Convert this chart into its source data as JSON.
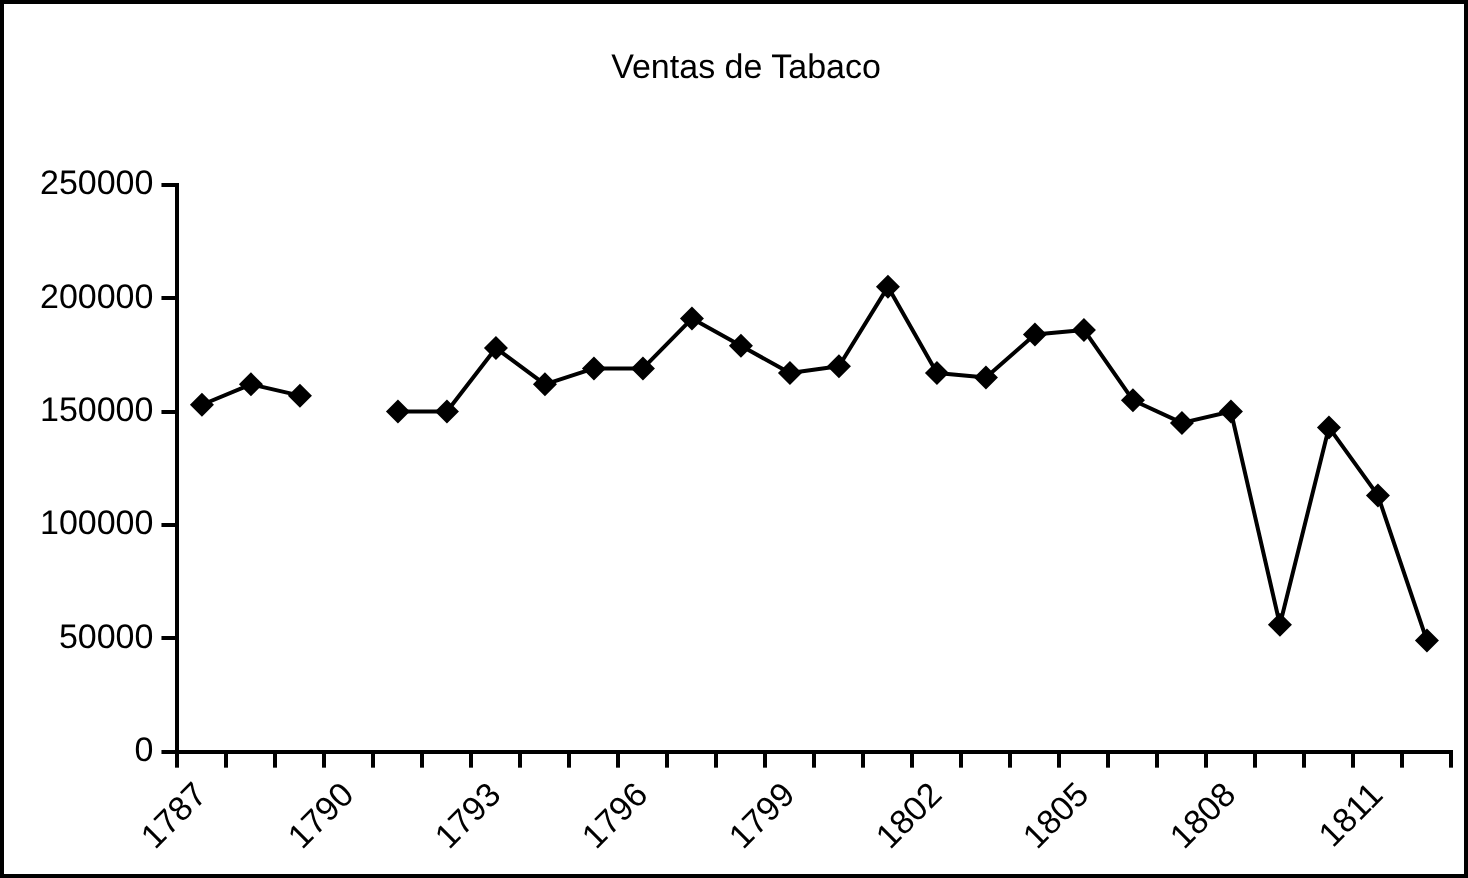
{
  "chart_data": {
    "type": "line",
    "title": "Ventas de Tabaco",
    "categories": [
      "1787",
      null,
      null,
      "1790",
      null,
      null,
      "1793",
      null,
      null,
      "1796",
      null,
      null,
      "1799",
      null,
      null,
      "1802",
      null,
      null,
      "1805",
      null,
      null,
      "1808",
      null,
      null,
      "1811",
      null
    ],
    "series": [
      {
        "color": "#000000",
        "values": [
          153000,
          162000,
          157000,
          null,
          150000,
          150000,
          178000,
          162000,
          169000,
          169000,
          191000,
          179000,
          167000,
          170000,
          205000,
          167000,
          165000,
          184000,
          186000,
          155000,
          145000,
          150000,
          56000,
          143000,
          113000,
          49000
        ]
      }
    ],
    "ylim": [
      0,
      250000
    ],
    "yticks": [
      0,
      50000,
      100000,
      150000,
      200000,
      250000
    ],
    "grid": false,
    "legend": false,
    "marker": "diamond",
    "line_style": "solid"
  }
}
